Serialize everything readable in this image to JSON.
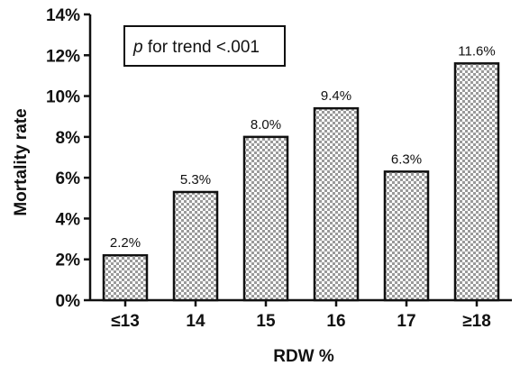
{
  "chart_data": {
    "type": "bar",
    "categories": [
      "≤13",
      "14",
      "15",
      "16",
      "17",
      "≥18"
    ],
    "values": [
      2.2,
      5.3,
      8.0,
      9.4,
      6.3,
      11.6
    ],
    "value_labels": [
      "2.2%",
      "5.3%",
      "8.0%",
      "9.4%",
      "6.3%",
      "11.6%"
    ],
    "xlabel": "RDW %",
    "ylabel": "Mortality rate",
    "ylim": [
      0,
      14
    ],
    "yticks": [
      0,
      2,
      4,
      6,
      8,
      10,
      12,
      14
    ],
    "ytick_labels": [
      "0%",
      "2%",
      "4%",
      "6%",
      "8%",
      "10%",
      "12%",
      "14%"
    ],
    "annotation": {
      "italic_part": "p",
      "rest": " for trend <.001"
    },
    "bar_fill": "checkered-gray",
    "grid": false
  }
}
